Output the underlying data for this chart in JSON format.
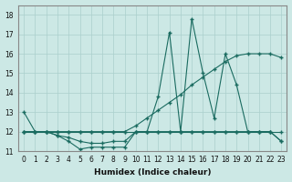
{
  "xlabel": "Humidex (Indice chaleur)",
  "background_color": "#cce8e5",
  "grid_color": "#aacfcc",
  "line_color": "#1a6b60",
  "xlim": [
    -0.5,
    23.5
  ],
  "ylim": [
    11.0,
    18.5
  ],
  "yticks": [
    11,
    12,
    13,
    14,
    15,
    16,
    17,
    18
  ],
  "xticks": [
    0,
    1,
    2,
    3,
    4,
    5,
    6,
    7,
    8,
    9,
    10,
    11,
    12,
    13,
    14,
    15,
    16,
    17,
    18,
    19,
    20,
    21,
    22,
    23
  ],
  "series": {
    "s1": [
      13.0,
      12.0,
      12.0,
      11.8,
      11.5,
      11.1,
      11.2,
      11.2,
      11.2,
      11.2,
      12.0,
      12.0,
      13.8,
      17.1,
      12.0,
      17.8,
      15.0,
      12.7,
      16.0,
      14.4,
      12.0,
      12.0,
      12.0,
      11.5
    ],
    "s2": [
      12.0,
      12.0,
      12.0,
      12.0,
      12.0,
      12.0,
      12.0,
      12.0,
      12.0,
      12.0,
      12.0,
      12.0,
      12.0,
      12.0,
      12.0,
      12.0,
      12.0,
      12.0,
      12.0,
      12.0,
      12.0,
      12.0,
      12.0,
      12.0
    ],
    "s3": [
      12.0,
      12.0,
      12.0,
      11.8,
      11.7,
      11.5,
      11.4,
      11.4,
      11.5,
      11.5,
      12.0,
      12.0,
      12.0,
      12.0,
      12.0,
      12.0,
      12.0,
      12.0,
      12.0,
      12.0,
      12.0,
      12.0,
      12.0,
      11.5
    ],
    "s4": [
      12.0,
      12.0,
      12.0,
      12.0,
      12.0,
      12.0,
      12.0,
      12.0,
      12.0,
      12.0,
      12.3,
      12.7,
      13.1,
      13.5,
      13.9,
      14.4,
      14.8,
      15.2,
      15.6,
      15.9,
      16.0,
      16.0,
      16.0,
      15.8
    ]
  },
  "xlabel_fontsize": 6.5,
  "tick_fontsize": 5.5
}
